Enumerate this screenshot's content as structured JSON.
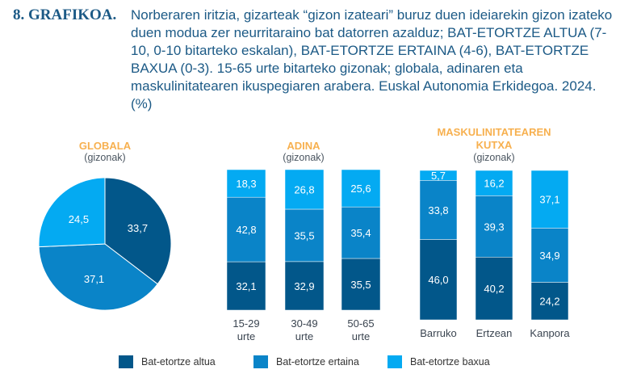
{
  "figure_number": "8. GRAFIKOA.",
  "title": "Norberaren iritzia, gizarteak “gizon izateari” buruz duen ideiarekin gizon izateko duen modua zer neurritaraino bat datorren azalduz; BAT-ETORTZE ALTUA (7-10, 0-10 bitarteko eskalan), BAT-ETORTZE ERTAINA (4-6), BAT-ETORTZE BAXUA (0-3). 15-65 urte bitarteko gizonak; globala, adinaren eta maskulinitatearen ikuspegiaren arabera. Euskal Autonomia Erkidegoa. 2024. (%)",
  "colors": {
    "altua": "#02578a",
    "ertaina": "#0a84c8",
    "baxua": "#04aaf2",
    "heading": "#f7b04f",
    "title": "#1c5a86"
  },
  "legend": [
    "Bat-etortze altua",
    "Bat-etortze ertaina",
    "Bat-etortze baxua"
  ],
  "chart_data": [
    {
      "type": "pie",
      "title": "GLOBALA",
      "subtitle": "(gizonak)",
      "labels": [
        "Bat-etortze altua",
        "Bat-etortze ertaina",
        "Bat-etortze baxua"
      ],
      "values": [
        33.7,
        37.1,
        24.5
      ],
      "value_labels": [
        "33,7",
        "37,1",
        "24,5"
      ]
    },
    {
      "type": "bar",
      "stacked": true,
      "title": "ADINA",
      "subtitle": "(gizonak)",
      "categories": [
        "15-29 urte",
        "30-49 urte",
        "50-65 urte"
      ],
      "category_lines": [
        [
          "15-29",
          "urte"
        ],
        [
          "30-49",
          "urte"
        ],
        [
          "50-65",
          "urte"
        ]
      ],
      "series": [
        {
          "name": "Bat-etortze altua",
          "values": [
            32.1,
            32.9,
            35.5
          ],
          "labels": [
            "32,1",
            "32,9",
            "35,5"
          ]
        },
        {
          "name": "Bat-etortze ertaina",
          "values": [
            42.8,
            35.5,
            35.4
          ],
          "labels": [
            "42,8",
            "35,5",
            "35,4"
          ]
        },
        {
          "name": "Bat-etortze baxua",
          "values": [
            18.3,
            26.8,
            25.6
          ],
          "labels": [
            "18,3",
            "26,8",
            "25,6"
          ]
        }
      ]
    },
    {
      "type": "bar",
      "stacked": true,
      "title": "MASKULINITATEAREN KUTXA",
      "title_lines": [
        "MASKULINITATEAREN",
        "KUTXA"
      ],
      "subtitle": "(gizonak)",
      "categories": [
        "Barruko",
        "Ertzean",
        "Kanpora"
      ],
      "category_lines": [
        [
          "Barruko"
        ],
        [
          "Ertzean"
        ],
        [
          "Kanpora"
        ]
      ],
      "series": [
        {
          "name": "Bat-etortze altua",
          "values": [
            46.0,
            40.2,
            24.2
          ],
          "labels": [
            "46,0",
            "40,2",
            "24,2"
          ]
        },
        {
          "name": "Bat-etortze ertaina",
          "values": [
            33.8,
            39.3,
            34.9
          ],
          "labels": [
            "33,8",
            "39,3",
            "34,9"
          ]
        },
        {
          "name": "Bat-etortze baxua",
          "values": [
            5.7,
            16.2,
            37.1
          ],
          "labels": [
            "5,7",
            "16,2",
            "37,1"
          ]
        }
      ]
    }
  ]
}
